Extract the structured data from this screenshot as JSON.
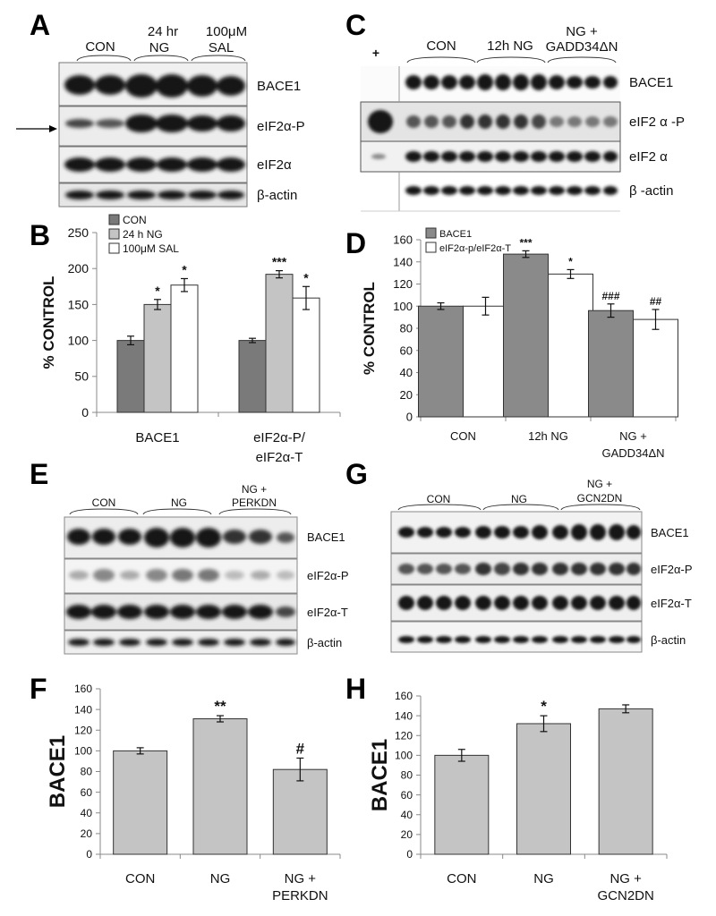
{
  "panels": {
    "A": {
      "letter": "A",
      "group_labels": [
        "CON",
        "24 hr",
        "NG",
        "100μM",
        "SAL"
      ],
      "band_labels": [
        "BACE1",
        "eIF2α-P",
        "eIF2α",
        "β-actin"
      ]
    },
    "C": {
      "letter": "C",
      "marker": "+",
      "group_labels": [
        "CON",
        "12h NG",
        "NG +",
        "GADD34ΔN"
      ],
      "band_labels": [
        "BACE1",
        "eIF2 α -P",
        "eIF2 α",
        "β -actin"
      ]
    },
    "E": {
      "letter": "E",
      "group_labels": [
        "CON",
        "NG",
        "NG +",
        "PERKDN"
      ],
      "band_labels": [
        "BACE1",
        "eIF2α-P",
        "eIF2α-T",
        "β-actin"
      ]
    },
    "G": {
      "letter": "G",
      "group_labels": [
        "CON",
        "NG",
        "NG +",
        "GCN2DN"
      ],
      "band_labels": [
        "BACE1",
        "eIF2α-P",
        "eIF2α-T",
        "β-actin"
      ]
    }
  },
  "chart_data": [
    {
      "id": "B",
      "letter": "B",
      "type": "bar",
      "categories": [
        "BACE1",
        "eIF2α-P/"
      ],
      "category_line2": [
        "",
        "eIF2α-T"
      ],
      "series": [
        {
          "name": "CON",
          "color": "#7a7a7a",
          "values": [
            100,
            100
          ],
          "errors": [
            6,
            3
          ],
          "sig": [
            "",
            ""
          ]
        },
        {
          "name": "24 h NG",
          "color": "#c4c4c4",
          "values": [
            150,
            192
          ],
          "errors": [
            7,
            5
          ],
          "sig": [
            "*",
            "***"
          ]
        },
        {
          "name": "100μM SAL",
          "color": "#ffffff",
          "values": [
            177,
            159
          ],
          "errors": [
            9,
            16
          ],
          "sig": [
            "*",
            "*"
          ]
        }
      ],
      "ylabel": "% CONTROL",
      "ylim": [
        0,
        250
      ],
      "yticks": [
        "0",
        "50",
        "100",
        "150",
        "200",
        "250"
      ],
      "legend": "top-left"
    },
    {
      "id": "D",
      "letter": "D",
      "type": "bar",
      "categories": [
        "CON",
        "12h NG",
        "NG +"
      ],
      "category_line2": [
        "",
        "",
        "GADD34ΔN"
      ],
      "series": [
        {
          "name": "BACE1",
          "color": "#8a8a8a",
          "values": [
            100,
            147,
            96
          ],
          "errors": [
            3,
            3,
            6
          ],
          "sig": [
            "",
            "***",
            "###"
          ]
        },
        {
          "name": "eIF2α-p/eIF2α-T",
          "color": "#ffffff",
          "values": [
            100,
            129,
            88
          ],
          "errors": [
            8,
            4,
            9
          ],
          "sig": [
            "",
            "*",
            "##"
          ]
        }
      ],
      "ylabel": "% CONTROL",
      "ylim": [
        0,
        160
      ],
      "yticks": [
        "0",
        "20",
        "40",
        "60",
        "80",
        "100",
        "120",
        "140",
        "160"
      ],
      "legend": "top-left"
    },
    {
      "id": "F",
      "letter": "F",
      "type": "bar",
      "categories": [
        "CON",
        "NG",
        "NG +"
      ],
      "category_line2": [
        "",
        "",
        "PERKDN"
      ],
      "series": [
        {
          "name": "",
          "color": "#c4c4c4",
          "values": [
            100,
            131,
            82
          ],
          "errors": [
            3,
            3,
            11
          ],
          "sig": [
            "",
            "**",
            "#"
          ]
        }
      ],
      "ylabel": "BACE1",
      "ylim": [
        0,
        160
      ],
      "yticks": [
        "0",
        "20",
        "40",
        "60",
        "80",
        "100",
        "120",
        "140",
        "160"
      ],
      "legend": "none"
    },
    {
      "id": "H",
      "letter": "H",
      "type": "bar",
      "categories": [
        "CON",
        "NG",
        "NG +"
      ],
      "category_line2": [
        "",
        "",
        "GCN2DN"
      ],
      "series": [
        {
          "name": "",
          "color": "#c4c4c4",
          "values": [
            100,
            132,
            147
          ],
          "errors": [
            6,
            8,
            4
          ],
          "sig": [
            "",
            "*",
            ""
          ]
        }
      ],
      "ylabel": "BACE1",
      "ylim": [
        0,
        160
      ],
      "yticks": [
        "0",
        "20",
        "40",
        "60",
        "80",
        "100",
        "120",
        "140",
        "160"
      ],
      "legend": "none"
    }
  ]
}
